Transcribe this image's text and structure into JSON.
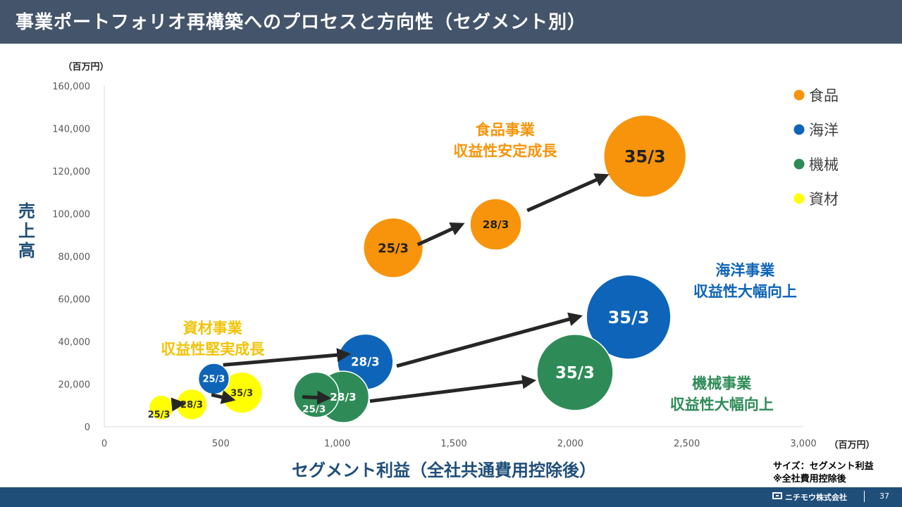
{
  "header": {
    "title": "事業ポートフォリオ再構築へのプロセスと方向性（セグメント別）"
  },
  "chart_data": {
    "type": "bubble",
    "xlabel": "セグメント利益（全社共通費用控除後）",
    "ylabel": "売上高",
    "x_unit": "（百万円）",
    "y_unit": "（百万円）",
    "xlim": [
      0,
      3000
    ],
    "ylim": [
      0,
      160000
    ],
    "x_ticks": [
      "0",
      "500",
      "1,000",
      "1,500",
      "2,000",
      "2,500",
      "3,000"
    ],
    "y_ticks": [
      "0",
      "20,000",
      "40,000",
      "60,000",
      "80,000",
      "100,000",
      "120,000",
      "140,000",
      "160,000"
    ],
    "legend": [
      "食品",
      "海洋",
      "機械",
      "資材"
    ],
    "legend_position": "right",
    "grid": false,
    "series": [
      {
        "name": "資材",
        "color": "#ffff00",
        "label_color": "#333333",
        "points": [
          {
            "label": "25/3",
            "x": 245,
            "y": 9000,
            "size": 1.2
          },
          {
            "label": "28/3",
            "x": 375,
            "y": 10500,
            "size": 1.5
          },
          {
            "label": "35/3",
            "x": 590,
            "y": 16000,
            "size": 2.0
          }
        ]
      },
      {
        "name": "海洋",
        "color": "#0e64b8",
        "label_color": "#ffffff",
        "points": [
          {
            "label": "25/3",
            "x": 470,
            "y": 22500,
            "size": 1.5
          },
          {
            "label": "28/3",
            "x": 1120,
            "y": 30500,
            "size": 2.7
          },
          {
            "label": "35/3",
            "x": 2250,
            "y": 51500,
            "size": 4.1
          }
        ]
      },
      {
        "name": "機械",
        "color": "#2e8b57",
        "label_color": "#ffffff",
        "points": [
          {
            "label": "25/3",
            "x": 910,
            "y": 15000,
            "size": 2.2
          },
          {
            "label": "28/3",
            "x": 1025,
            "y": 14000,
            "size": 2.5
          },
          {
            "label": "35/3",
            "x": 2020,
            "y": 25500,
            "size": 3.7
          }
        ]
      },
      {
        "name": "食品",
        "color": "#f7940b",
        "label_color": "#222222",
        "points": [
          {
            "label": "25/3",
            "x": 1240,
            "y": 84000,
            "size": 2.9
          },
          {
            "label": "28/3",
            "x": 1680,
            "y": 95000,
            "size": 2.5
          },
          {
            "label": "35/3",
            "x": 2320,
            "y": 127000,
            "size": 4.0
          }
        ]
      }
    ],
    "arrows": [
      {
        "from": [
          295,
          10500
        ],
        "to": [
          325,
          10800
        ]
      },
      {
        "from": [
          460,
          15000
        ],
        "to": [
          540,
          13000
        ]
      },
      {
        "from": [
          510,
          29000
        ],
        "to": [
          1035,
          34000
        ]
      },
      {
        "from": [
          850,
          14000
        ],
        "to": [
          950,
          13500
        ]
      },
      {
        "from": [
          1140,
          12000
        ],
        "to": [
          1830,
          21500
        ]
      },
      {
        "from": [
          1255,
          28500
        ],
        "to": [
          2030,
          51500
        ]
      },
      {
        "from": [
          1345,
          85500
        ],
        "to": [
          1525,
          94500
        ]
      },
      {
        "from": [
          1815,
          101500
        ],
        "to": [
          2145,
          117500
        ]
      }
    ],
    "annotations": [
      {
        "lines": [
          "食品事業",
          "収益性安定成長"
        ],
        "color": "#f7940b",
        "x": 1720,
        "y": 137000
      },
      {
        "lines": [
          "海洋事業",
          "収益性大幅向上"
        ],
        "color": "#0e64b8",
        "x": 2750,
        "y": 71000
      },
      {
        "lines": [
          "機械事業",
          "収益性大幅向上"
        ],
        "color": "#2e8b57",
        "x": 2650,
        "y": 18000
      },
      {
        "lines": [
          "資材事業",
          "収益性堅実成長"
        ],
        "color": "#f2c307",
        "x": 465,
        "y": 44000
      }
    ]
  },
  "notes": [
    "サイズ：セグメント利益",
    "※全社費用控除後"
  ],
  "footer": {
    "company": "ニチモウ株式会社",
    "page": "37"
  }
}
